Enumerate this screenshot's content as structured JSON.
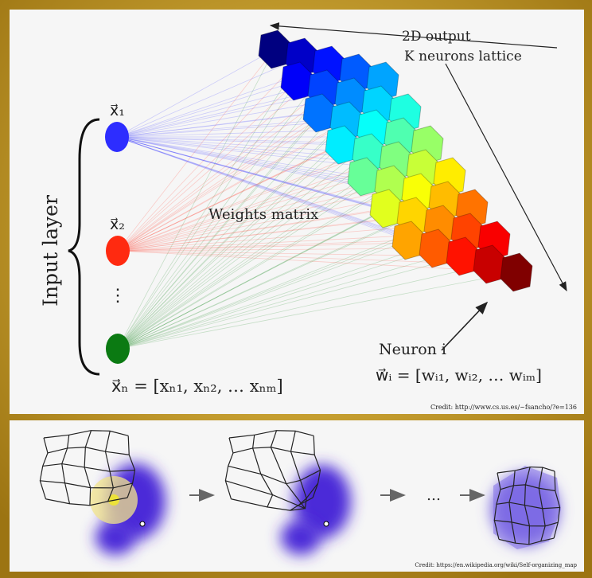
{
  "title_top": "2D output",
  "lattice_label": "K neurons lattice",
  "input_label": "Input layer",
  "inputs": [
    "x⃗₁",
    "x⃗₂",
    "⋮",
    "x⃗ₙ = [xₙ₁, xₙ₂, … xₙₘ]"
  ],
  "weights_label": "Weights matrix",
  "neuron_label": "Neuron i",
  "neuron_formula": "w⃗ᵢ = [wᵢ₁, wᵢ₂, … wᵢₘ]",
  "credit_top": "Credit: http://www.cs.us.es/~fsancho/?e=136",
  "ellipsis": "…",
  "credit_bottom": "Credit: https://en.wikipedia.org/wiki/Self-organizing_map"
}
